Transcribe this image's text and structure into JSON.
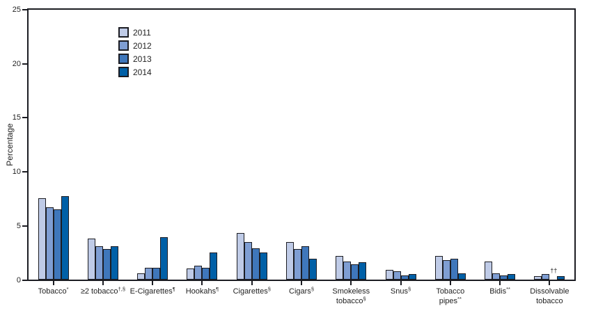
{
  "figure": {
    "y_axis_title": "Percentage",
    "background": "#ffffff",
    "frame_color": "#1b1c22",
    "text_color": "#1f1f1f"
  },
  "chart_data": {
    "type": "bar",
    "title": "",
    "xlabel": "",
    "ylabel": "Percentage",
    "ylim": [
      0,
      25
    ],
    "yticks": [
      0,
      5,
      10,
      15,
      20,
      25
    ],
    "grid": false,
    "legend_position": "inside-top-left",
    "bar_outline_color": "#1b1c22",
    "categories": [
      {
        "line1": "Tobacco",
        "sup1": "*",
        "line2": "",
        "sup2": ""
      },
      {
        "line1": "≥2 tobacco",
        "sup1": "†,§",
        "line2": "",
        "sup2": ""
      },
      {
        "line1": "E-Cigarettes",
        "sup1": "¶",
        "line2": "",
        "sup2": ""
      },
      {
        "line1": "Hookahs",
        "sup1": "¶",
        "line2": "",
        "sup2": ""
      },
      {
        "line1": "Cigarettes",
        "sup1": "§",
        "line2": "",
        "sup2": ""
      },
      {
        "line1": "Cigars",
        "sup1": "§",
        "line2": "",
        "sup2": ""
      },
      {
        "line1": "Smokeless",
        "sup1": "",
        "line2": "tobacco",
        "sup2": "§"
      },
      {
        "line1": "Snus",
        "sup1": "§",
        "line2": "",
        "sup2": ""
      },
      {
        "line1": "Tobacco",
        "sup1": "",
        "line2": "pipes",
        "sup2": "**"
      },
      {
        "line1": "Bidis",
        "sup1": "**",
        "line2": "",
        "sup2": ""
      },
      {
        "line1": "Dissolvable",
        "sup1": "",
        "line2": "tobacco",
        "sup2": ""
      }
    ],
    "series": [
      {
        "name": "2011",
        "color": "#bfcbe7",
        "values": [
          7.5,
          3.8,
          0.6,
          1.0,
          4.3,
          3.5,
          2.2,
          0.9,
          2.2,
          1.7,
          0.3
        ]
      },
      {
        "name": "2012",
        "color": "#7f9ed3",
        "values": [
          6.7,
          3.1,
          1.1,
          1.3,
          3.5,
          2.8,
          1.7,
          0.8,
          1.8,
          0.6,
          0.5
        ]
      },
      {
        "name": "2013",
        "color": "#3f77bb",
        "values": [
          6.5,
          2.8,
          1.1,
          1.1,
          2.9,
          3.1,
          1.4,
          0.4,
          1.9,
          0.4,
          null
        ]
      },
      {
        "name": "2014",
        "color": "#0060a7",
        "values": [
          7.7,
          3.1,
          3.9,
          2.5,
          2.5,
          1.9,
          1.6,
          0.5,
          0.6,
          0.5,
          0.3
        ]
      }
    ],
    "na_marker": {
      "symbol": "††",
      "category": "Dissolvable tobacco",
      "series": "2013"
    }
  }
}
